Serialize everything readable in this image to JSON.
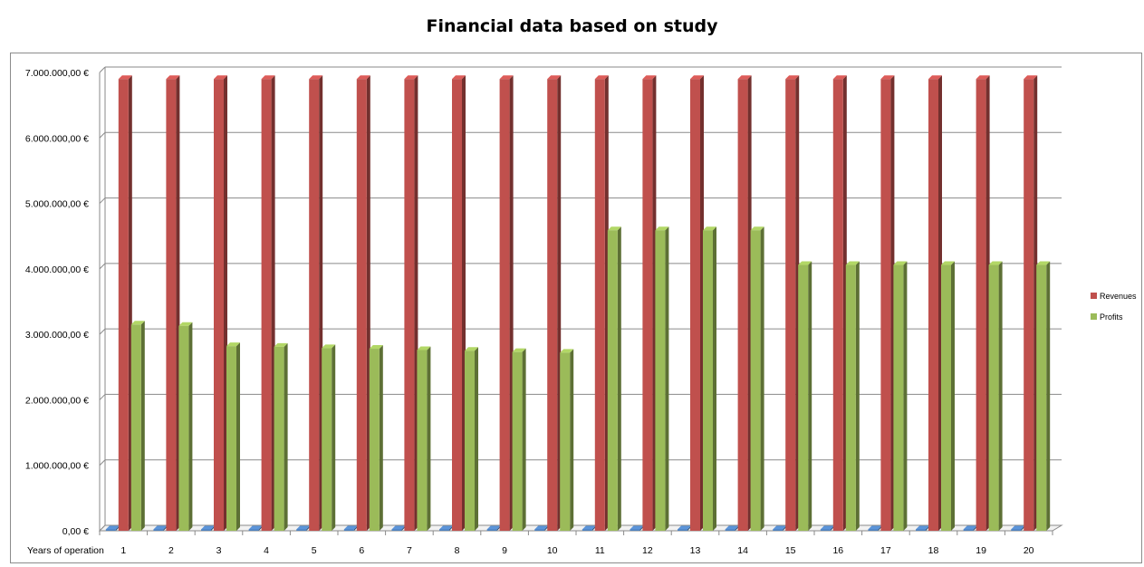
{
  "chart_data": {
    "type": "bar",
    "title": "Financial data based on study",
    "xlabel": "Years of operation",
    "ylabel": "",
    "ylim": [
      0,
      7000000
    ],
    "yticks": [
      "0,00 €",
      "1.000.000,00 €",
      "2.000.000,00 €",
      "3.000.000,00 €",
      "4.000.000,00 €",
      "5.000.000,00 €",
      "6.000.000,00 €",
      "7.000.000,00 €"
    ],
    "categories": [
      "1",
      "2",
      "3",
      "4",
      "5",
      "6",
      "7",
      "8",
      "9",
      "10",
      "11",
      "12",
      "13",
      "14",
      "15",
      "16",
      "17",
      "18",
      "19",
      "20"
    ],
    "series": [
      {
        "name": "",
        "values": [
          0,
          0,
          0,
          0,
          0,
          0,
          0,
          0,
          0,
          0,
          0,
          0,
          0,
          0,
          0,
          0,
          0,
          0,
          0,
          0
        ],
        "color": "#4f81bd"
      },
      {
        "name": "Revenues",
        "values": [
          6900000,
          6900000,
          6900000,
          6900000,
          6900000,
          6900000,
          6900000,
          6900000,
          6900000,
          6900000,
          6900000,
          6900000,
          6900000,
          6900000,
          6900000,
          6900000,
          6900000,
          6900000,
          6900000,
          6900000
        ],
        "color": "#c0504d"
      },
      {
        "name": "Profits",
        "values": [
          3150000,
          3130000,
          2820000,
          2810000,
          2790000,
          2780000,
          2760000,
          2750000,
          2730000,
          2720000,
          4590000,
          4590000,
          4590000,
          4590000,
          4060000,
          4060000,
          4060000,
          4060000,
          4060000,
          4060000
        ],
        "color": "#9bbb59"
      }
    ],
    "grid": true,
    "legend": "right"
  }
}
